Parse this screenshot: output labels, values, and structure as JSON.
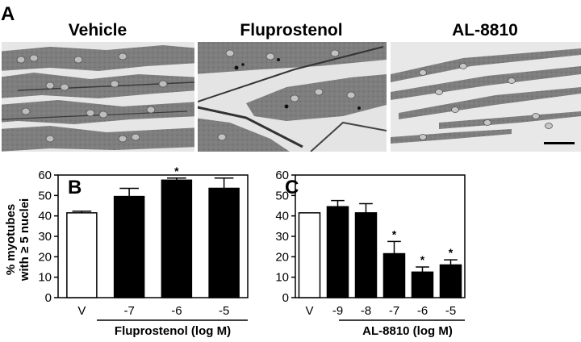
{
  "figure": {
    "panel_a": {
      "letter": "A",
      "micrographs": [
        {
          "title": "Vehicle"
        },
        {
          "title": "Fluprostenol"
        },
        {
          "title": "AL-8810"
        }
      ]
    }
  },
  "chart_data": [
    {
      "type": "bar",
      "panel": "B",
      "categories": [
        "V",
        "-7",
        "-6",
        "-5"
      ],
      "values": [
        41.5,
        49.5,
        57.5,
        53.5
      ],
      "errors": [
        0.8,
        4.0,
        1.0,
        5.0
      ],
      "fills": [
        "#ffffff",
        "#000000",
        "#000000",
        "#000000"
      ],
      "significant": [
        false,
        false,
        true,
        false
      ],
      "significance_marker": "*",
      "ylabel_lines": [
        "% myotubes",
        "with ≥ 5 nuclei"
      ],
      "xlabel": "Fluprostenol (log M)",
      "ylim": [
        0,
        60
      ],
      "yticks": [
        0,
        10,
        20,
        30,
        40,
        50,
        60
      ]
    },
    {
      "type": "bar",
      "panel": "C",
      "categories": [
        "V",
        "-9",
        "-8",
        "-7",
        "-6",
        "-5"
      ],
      "values": [
        41.5,
        44.5,
        41.5,
        21.5,
        12.5,
        16.0
      ],
      "errors": [
        0,
        3.0,
        4.5,
        6.0,
        2.5,
        2.5
      ],
      "fills": [
        "#ffffff",
        "#000000",
        "#000000",
        "#000000",
        "#000000",
        "#000000"
      ],
      "significant": [
        false,
        false,
        false,
        true,
        true,
        true
      ],
      "significance_marker": "*",
      "ylabel_lines": [],
      "xlabel": "AL-8810 (log M)",
      "ylim": [
        0,
        60
      ],
      "yticks": [
        0,
        10,
        20,
        30,
        40,
        50,
        60
      ]
    }
  ]
}
